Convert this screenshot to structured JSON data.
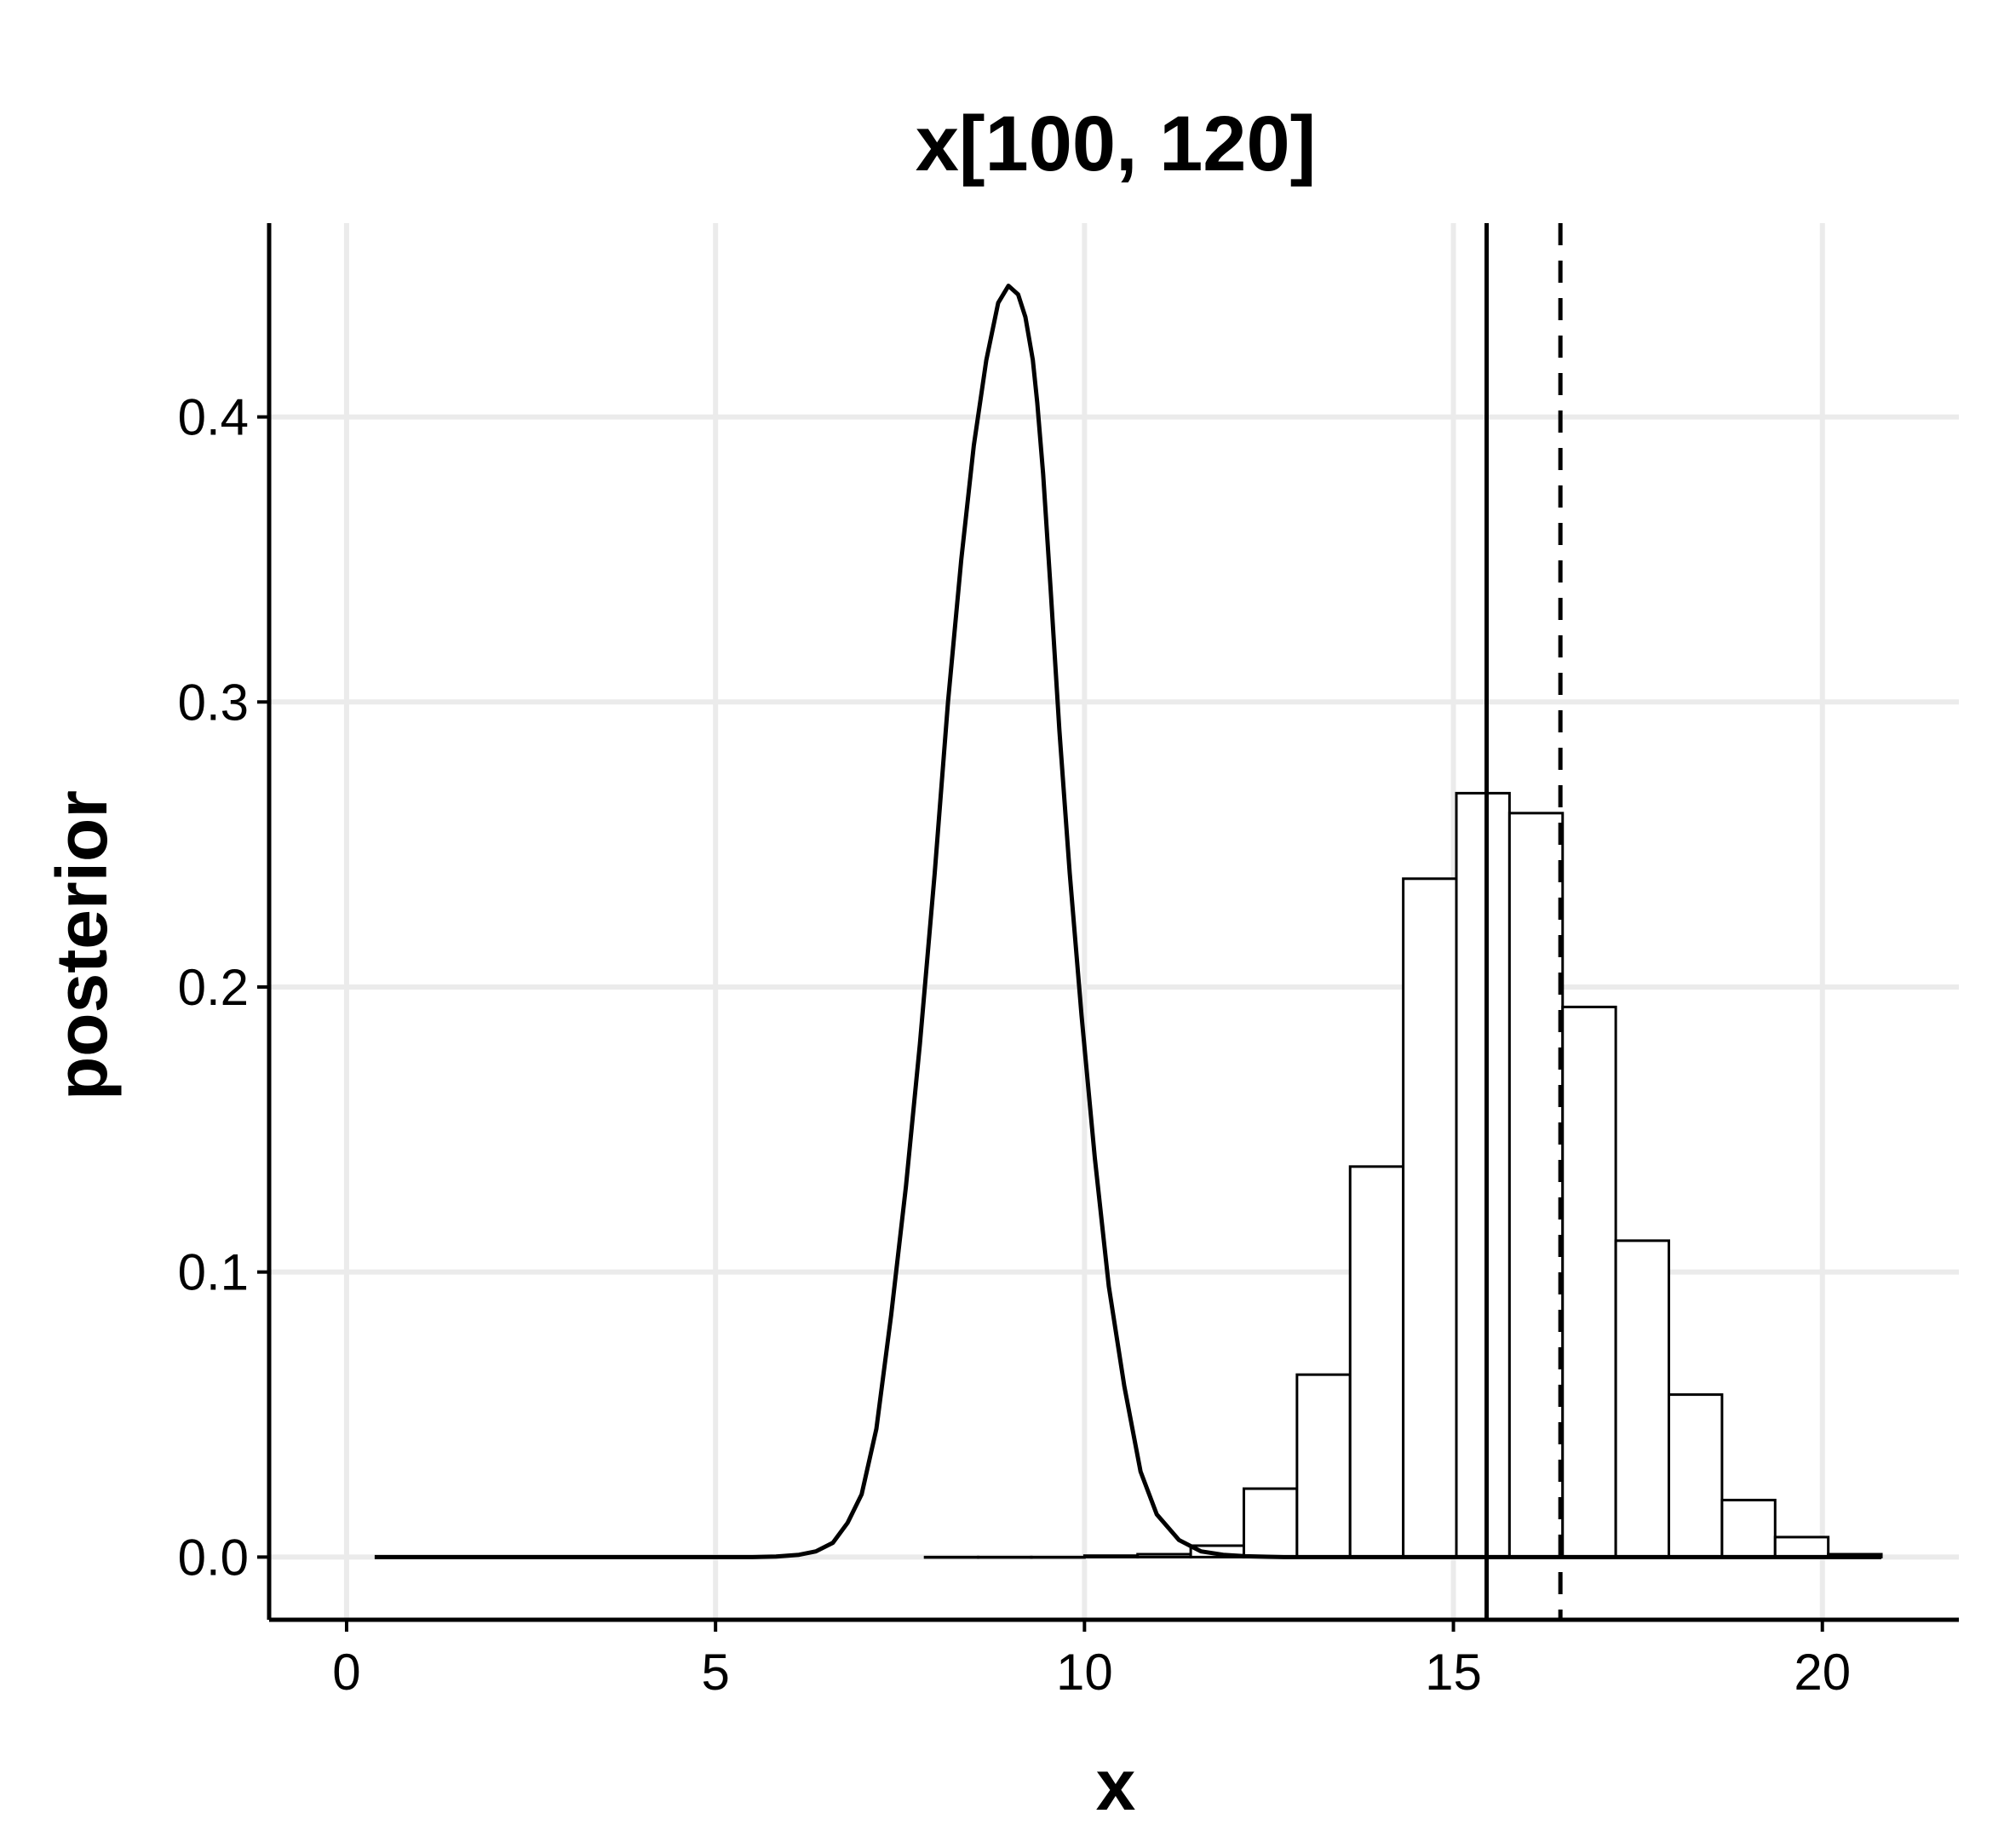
{
  "chart_data": {
    "type": "histogram",
    "title": "x[100, 120]",
    "xlabel": "x",
    "ylabel": "posterior",
    "xlim": [
      -1.05,
      21.85
    ],
    "ylim": [
      -0.022,
      0.468
    ],
    "x_ticks": [
      0,
      5,
      10,
      15,
      20
    ],
    "x_tick_labels": [
      "0",
      "5",
      "10",
      "15",
      "20"
    ],
    "y_ticks": [
      0.0,
      0.1,
      0.2,
      0.3,
      0.4
    ],
    "y_tick_labels": [
      "0.0",
      "0.1",
      "0.2",
      "0.3",
      "0.4"
    ],
    "grid": true,
    "histogram": {
      "bins": [
        {
          "x0": 7.84,
          "x1": 8.56,
          "value": 0.0
        },
        {
          "x0": 8.56,
          "x1": 9.28,
          "value": 0.0
        },
        {
          "x0": 9.28,
          "x1": 10.0,
          "value": 0.0
        },
        {
          "x0": 10.0,
          "x1": 10.72,
          "value": 0.0005
        },
        {
          "x0": 10.72,
          "x1": 11.44,
          "value": 0.001
        },
        {
          "x0": 11.44,
          "x1": 12.16,
          "value": 0.004
        },
        {
          "x0": 12.16,
          "x1": 12.88,
          "value": 0.024
        },
        {
          "x0": 12.88,
          "x1": 13.6,
          "value": 0.064
        },
        {
          "x0": 13.6,
          "x1": 14.32,
          "value": 0.137
        },
        {
          "x0": 14.32,
          "x1": 15.04,
          "value": 0.238
        },
        {
          "x0": 15.04,
          "x1": 15.76,
          "value": 0.268
        },
        {
          "x0": 15.76,
          "x1": 16.48,
          "value": 0.261
        },
        {
          "x0": 16.48,
          "x1": 17.2,
          "value": 0.193
        },
        {
          "x0": 17.2,
          "x1": 17.92,
          "value": 0.111
        },
        {
          "x0": 17.92,
          "x1": 18.64,
          "value": 0.057
        },
        {
          "x0": 18.64,
          "x1": 19.36,
          "value": 0.02
        },
        {
          "x0": 19.36,
          "x1": 20.08,
          "value": 0.007
        },
        {
          "x0": 20.08,
          "x1": 20.8,
          "value": 0.001
        }
      ]
    },
    "density_curve": {
      "x": [
        0.38,
        5.5,
        5.82,
        6.13,
        6.36,
        6.59,
        6.79,
        6.98,
        7.18,
        7.38,
        7.58,
        7.77,
        7.97,
        8.15,
        8.33,
        8.5,
        8.67,
        8.83,
        8.97,
        9.1,
        9.2,
        9.3,
        9.36,
        9.44,
        9.54,
        9.66,
        9.8,
        9.96,
        10.14,
        10.33,
        10.54,
        10.76,
        10.98,
        11.28,
        11.58,
        11.88,
        12.18,
        12.48,
        12.7,
        13.0,
        20.8
      ],
      "y": [
        0.0,
        0.0,
        0.0002,
        0.0008,
        0.002,
        0.005,
        0.012,
        0.022,
        0.045,
        0.085,
        0.13,
        0.18,
        0.24,
        0.3,
        0.35,
        0.39,
        0.42,
        0.44,
        0.446,
        0.443,
        0.435,
        0.42,
        0.405,
        0.38,
        0.34,
        0.29,
        0.24,
        0.19,
        0.14,
        0.095,
        0.06,
        0.03,
        0.015,
        0.006,
        0.002,
        0.0008,
        0.0003,
        0.0001,
        0.0,
        0.0,
        0.0
      ]
    },
    "vlines": [
      {
        "x": 15.45,
        "style": "solid"
      },
      {
        "x": 16.45,
        "style": "dashed"
      }
    ]
  }
}
